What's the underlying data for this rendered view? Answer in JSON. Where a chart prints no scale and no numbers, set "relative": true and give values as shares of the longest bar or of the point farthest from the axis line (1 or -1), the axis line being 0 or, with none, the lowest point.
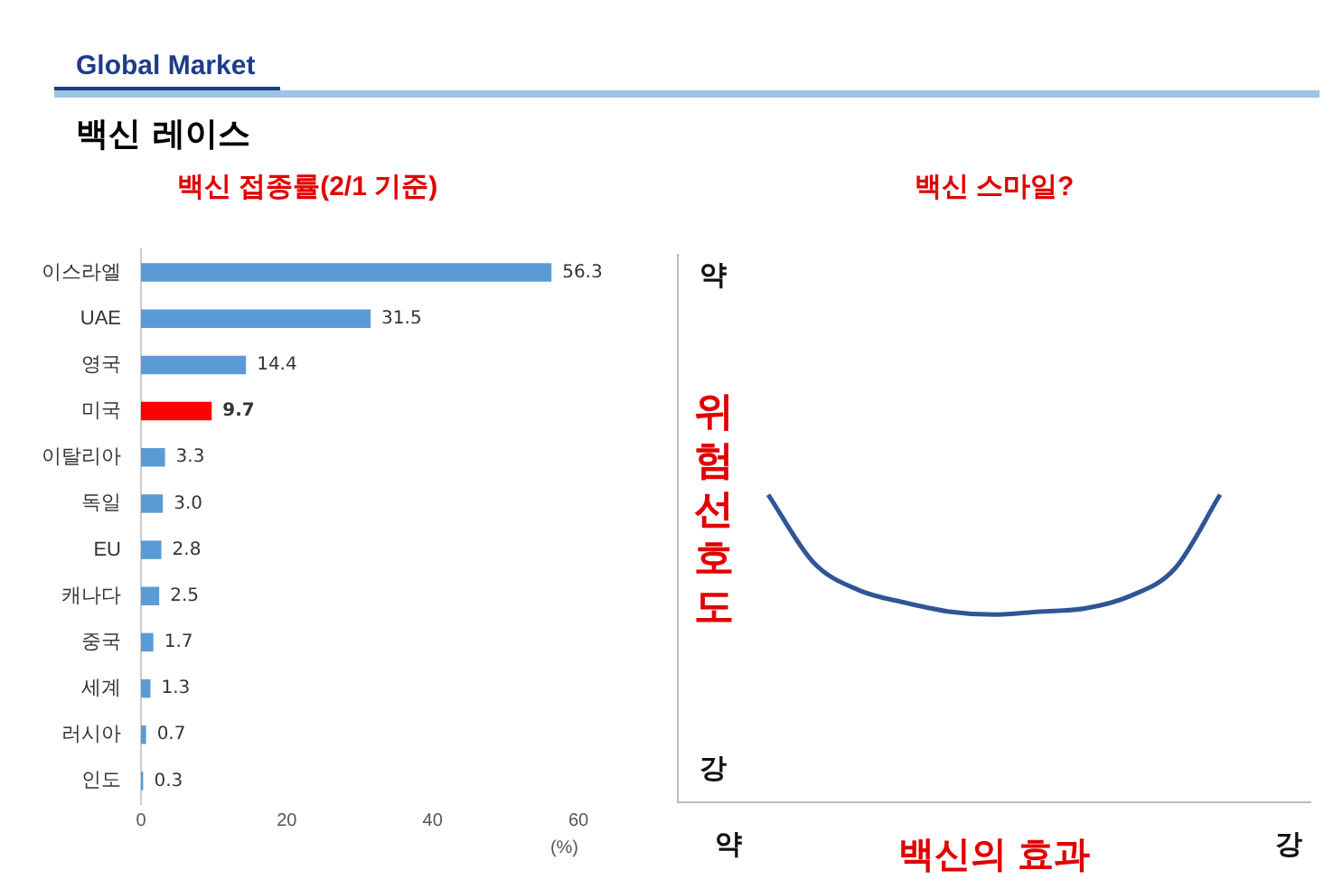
{
  "chart_data": [
    {
      "type": "bar",
      "orientation": "horizontal",
      "title": "백신 접종률(2/1 기준)",
      "xlabel": "(%)",
      "annotations": [
        "Global Market",
        "백신 레이스"
      ],
      "categories": [
        "이스라엘",
        "UAE",
        "영국",
        "미국",
        "이탈리아",
        "독일",
        "EU",
        "캐나다",
        "중국",
        "세계",
        "러시아",
        "인도"
      ],
      "values": [
        56.3,
        31.5,
        14.4,
        9.7,
        3.3,
        3.0,
        2.8,
        2.5,
        1.7,
        1.3,
        0.7,
        0.3
      ],
      "colors": [
        "#5b9bd5",
        "#5b9bd5",
        "#5b9bd5",
        "#ff0000",
        "#5b9bd5",
        "#5b9bd5",
        "#5b9bd5",
        "#5b9bd5",
        "#5b9bd5",
        "#5b9bd5",
        "#5b9bd5",
        "#5b9bd5"
      ],
      "value_labels": [
        "56.3",
        "31.5",
        "14.4",
        "9.7",
        "3.3",
        "3.0",
        "2.8",
        "2.5",
        "1.7",
        "1.3",
        "0.7",
        "0.3"
      ],
      "xlim": [
        0,
        60
      ],
      "xticks": [
        0,
        20,
        40,
        60
      ],
      "grid": false,
      "legend": false
    },
    {
      "type": "line",
      "relative": true,
      "title": "백신 스마일?",
      "xlabel": "백신의 효과",
      "ylabel": "위험 선호도",
      "annotations": [
        "약",
        "강",
        "약",
        "강"
      ],
      "categories": [
        null,
        null,
        null,
        null,
        null,
        null,
        null,
        null,
        null,
        null,
        null,
        null,
        null,
        null,
        null
      ],
      "series": [
        {
          "color": "#2f5597",
          "values": [
            null,
            null,
            1.0,
            0.78,
            0.69,
            0.65,
            0.62,
            0.61,
            0.62,
            0.63,
            0.67,
            0.76,
            1.0,
            null,
            null
          ]
        }
      ],
      "marker": "none",
      "line_style": "solid",
      "grid": false,
      "legend": false
    }
  ]
}
